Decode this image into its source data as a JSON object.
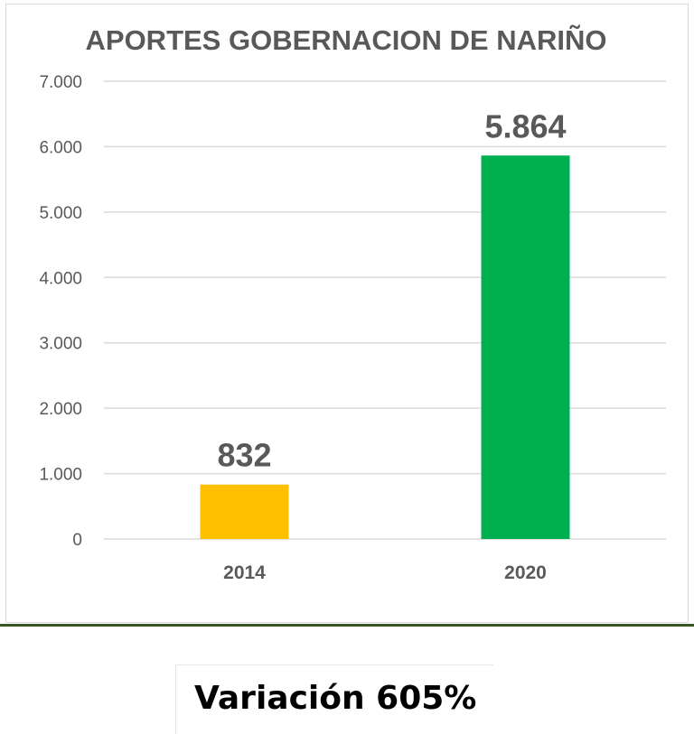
{
  "chart_data": {
    "type": "bar",
    "title": "APORTES GOBERNACION DE NARIÑO",
    "xlabel": "",
    "ylabel": "",
    "categories": [
      "2014",
      "2020"
    ],
    "values": [
      832,
      5864
    ],
    "data_labels": [
      "832",
      "5.864"
    ],
    "bar_colors": [
      "#FFC000",
      "#00B050"
    ],
    "ylim": [
      0,
      7000
    ],
    "yticks": [
      0,
      1000,
      2000,
      3000,
      4000,
      5000,
      6000,
      7000
    ],
    "ytick_labels": [
      "0",
      "1.000",
      "2.000",
      "3.000",
      "4.000",
      "5.000",
      "6.000",
      "7.000"
    ],
    "grid": true,
    "legend": "none"
  },
  "footer": {
    "variation_label": "Variación 605%"
  },
  "colors": {
    "divider": "#375623",
    "title_text": "#595959",
    "tick_text": "#595959",
    "gridline": "#d9d9d9"
  }
}
